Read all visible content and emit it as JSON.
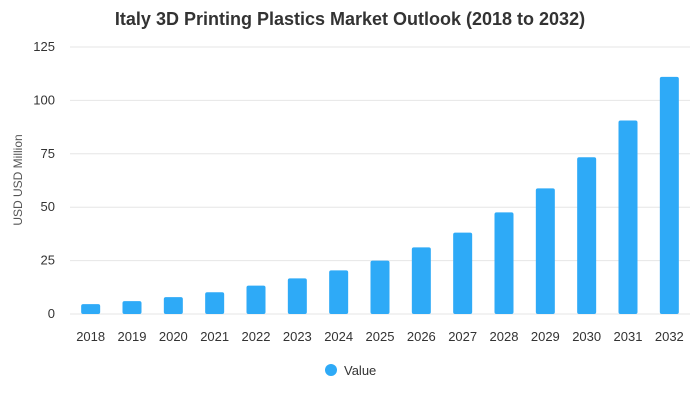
{
  "chart_data": {
    "type": "bar",
    "title": "Italy 3D Printing Plastics Market Outlook (2018 to 2032)",
    "xlabel": "",
    "ylabel": "USD USD Million",
    "categories": [
      "2018",
      "2019",
      "2020",
      "2021",
      "2022",
      "2023",
      "2024",
      "2025",
      "2026",
      "2027",
      "2028",
      "2029",
      "2030",
      "2031",
      "2032"
    ],
    "series": [
      {
        "name": "Value",
        "values": [
          4.6,
          6.0,
          7.9,
          10.2,
          13.3,
          16.7,
          20.4,
          25.0,
          31.2,
          38.1,
          47.6,
          58.8,
          73.4,
          90.6,
          111.0
        ],
        "color": "#2eaaf7"
      }
    ],
    "ylim": [
      0,
      125
    ],
    "yticks": [
      0,
      25,
      50,
      75,
      100,
      125
    ],
    "grid": true,
    "legend": "bottom-center"
  }
}
